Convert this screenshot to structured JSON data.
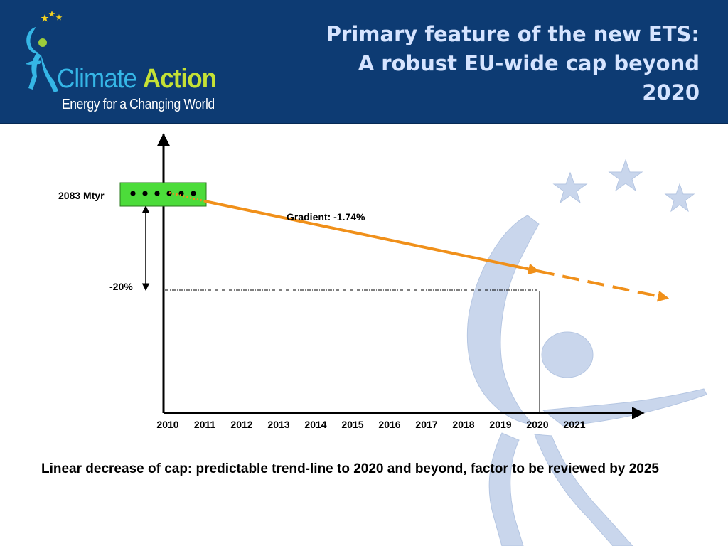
{
  "header": {
    "logo": {
      "brand_word_1": "Climate",
      "brand_word_2": "Action",
      "tagline": "Energy for a Changing World"
    },
    "title_lines": [
      "Primary feature of the new ETS:",
      "A robust EU-wide cap beyond",
      "2020"
    ]
  },
  "annotations": {
    "cap_label": "2083 Mtyr",
    "reduction_label": "-20%",
    "gradient_label": "Gradient: -1.74%"
  },
  "caption": "Linear decrease of cap: predictable trend-line to 2020 and beyond, factor to be reviewed by 2025",
  "colors": {
    "header_bg": "#0d3b73",
    "title_text": "#d6e4ff",
    "trend_line": "#f0901a",
    "cap_box": "#4cdc3a",
    "watermark": "#c9d6ec"
  },
  "chart_data": {
    "type": "line",
    "x": [
      "2010",
      "2011",
      "2012",
      "2013",
      "2014",
      "2015",
      "2016",
      "2017",
      "2018",
      "2019",
      "2020",
      "2021"
    ],
    "start_value_label": "2083 Mtyr",
    "series": [
      {
        "name": "",
        "style": "solid",
        "x": [
          2011,
          2020
        ],
        "y": [
          100,
          84.3
        ]
      },
      {
        "name": "",
        "style": "dashed",
        "x": [
          2020,
          2023.5
        ],
        "y": [
          84.3,
          78.2
        ]
      }
    ],
    "reference_level": -20,
    "gradient_percent": -1.74
  }
}
